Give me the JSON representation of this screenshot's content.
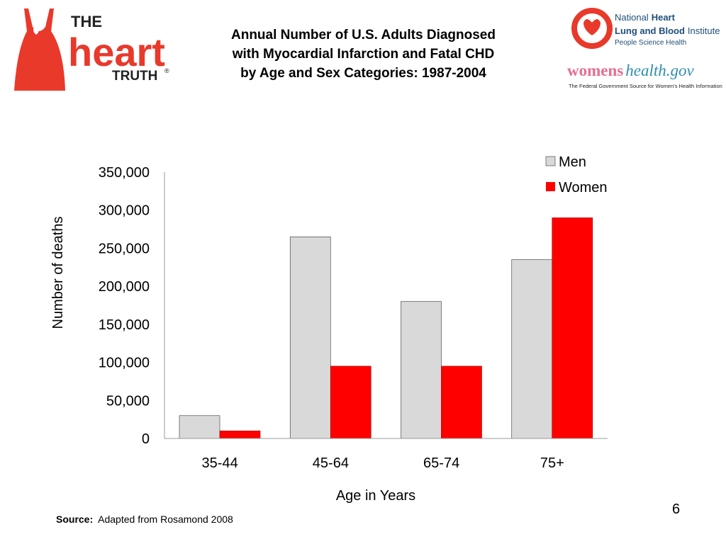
{
  "logos": {
    "heart_truth": {
      "line1": "THE",
      "line2": "heart",
      "line3": "TRUTH",
      "mark": "®"
    },
    "nhlbi": {
      "line1_a": "National ",
      "line1_b": "Heart",
      "line2_a": "Lung and Blood",
      "line2_b": " Institute",
      "line3": "People Science Health"
    },
    "womenshealth": {
      "name_a": "womens",
      "name_b": "health.gov",
      "tagline": "The Federal Government Source for Women's Health Information"
    }
  },
  "colors": {
    "men": "#d9d9d9",
    "women": "#ff0000",
    "brand_red": "#e8392b"
  },
  "chart_data": {
    "type": "bar",
    "title": "Annual Number of U.S. Adults Diagnosed with Myocardial Infarction and Fatal CHD by Age and Sex Categories: 1987-2004",
    "title_lines": [
      "Annual Number of U.S. Adults Diagnosed",
      "with Myocardial Infarction and Fatal CHD",
      "by Age and Sex Categories: 1987-2004"
    ],
    "xlabel": "Age in Years",
    "ylabel": "Number of deaths",
    "categories": [
      "35-44",
      "45-64",
      "65-74",
      "75+"
    ],
    "series": [
      {
        "name": "Men",
        "values": [
          30000,
          265000,
          180000,
          235000
        ]
      },
      {
        "name": "Women",
        "values": [
          10000,
          95000,
          95000,
          290000
        ]
      }
    ],
    "ylim": [
      0,
      350000
    ],
    "yticks": [
      "0",
      "50,000",
      "100,000",
      "150,000",
      "200,000",
      "250,000",
      "300,000",
      "350,000"
    ],
    "grid": false,
    "legend": "top-right"
  },
  "footer": {
    "source_label": "Source:",
    "source_text": "Adapted from Rosamond 2008",
    "page": "6"
  }
}
